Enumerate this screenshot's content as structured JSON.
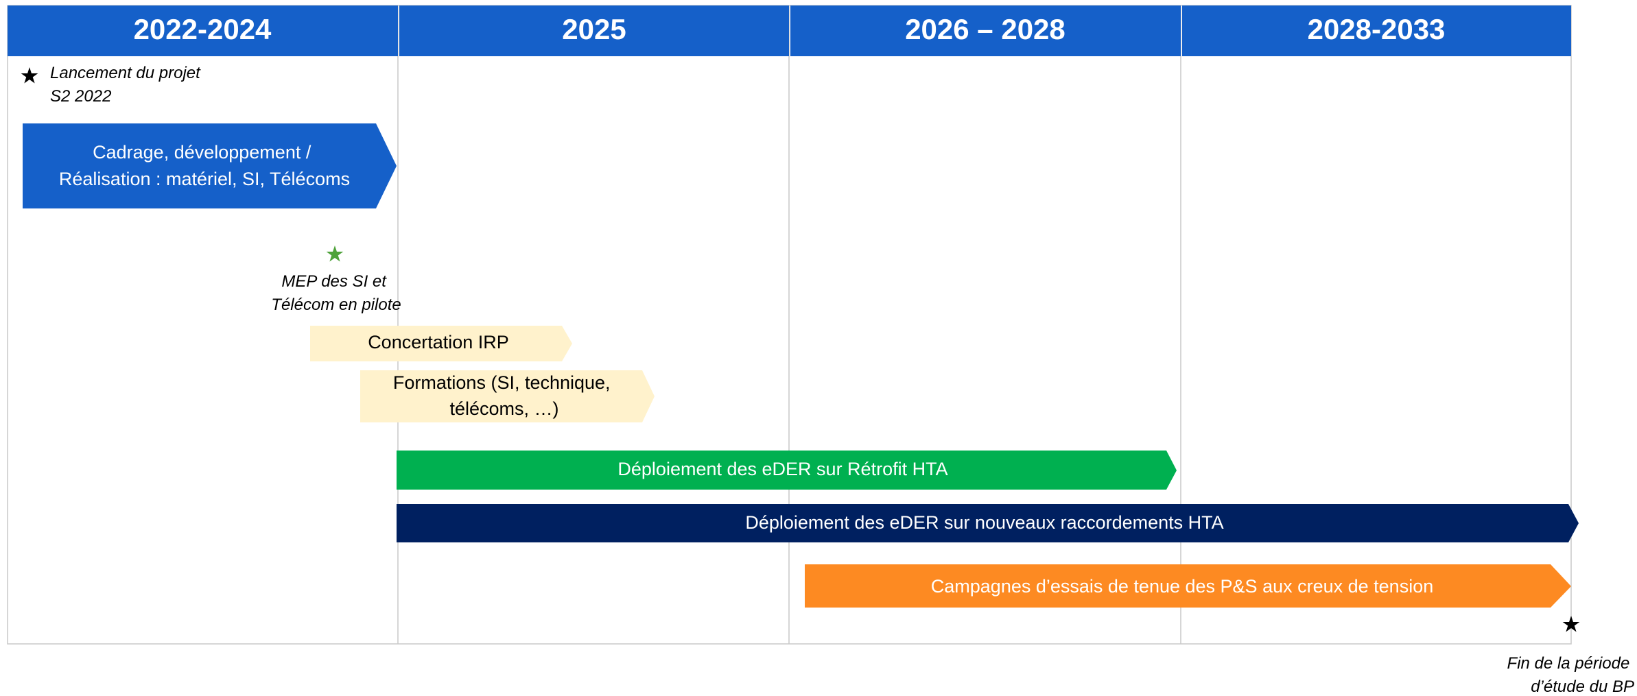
{
  "header": {
    "columns": [
      "2022-2024",
      "2025",
      "2026 – 2028",
      "2028-2033"
    ]
  },
  "milestones": [
    {
      "lines": [
        "Lancement du projet",
        "S2 2022"
      ]
    },
    {
      "lines": [
        "MEP des SI et",
        "Télécom en pilote"
      ]
    },
    {
      "lines": [
        "Fin de la période",
        "d’étude du BP"
      ]
    }
  ],
  "tasks": [
    {
      "lines": [
        "Cadrage, développement /",
        "Réalisation : matériel, SI, Télécoms"
      ]
    },
    {
      "lines": [
        "Concertation IRP"
      ]
    },
    {
      "lines": [
        "Formations (SI, technique,",
        "télécoms, …)"
      ]
    },
    {
      "lines": [
        "Déploiement des eDER sur Rétrofit HTA"
      ]
    },
    {
      "lines": [
        "Déploiement des eDER sur nouveaux raccordements HTA"
      ]
    },
    {
      "lines": [
        "Campagnes d’essais de tenue des P&S aux creux de tension"
      ]
    }
  ]
}
